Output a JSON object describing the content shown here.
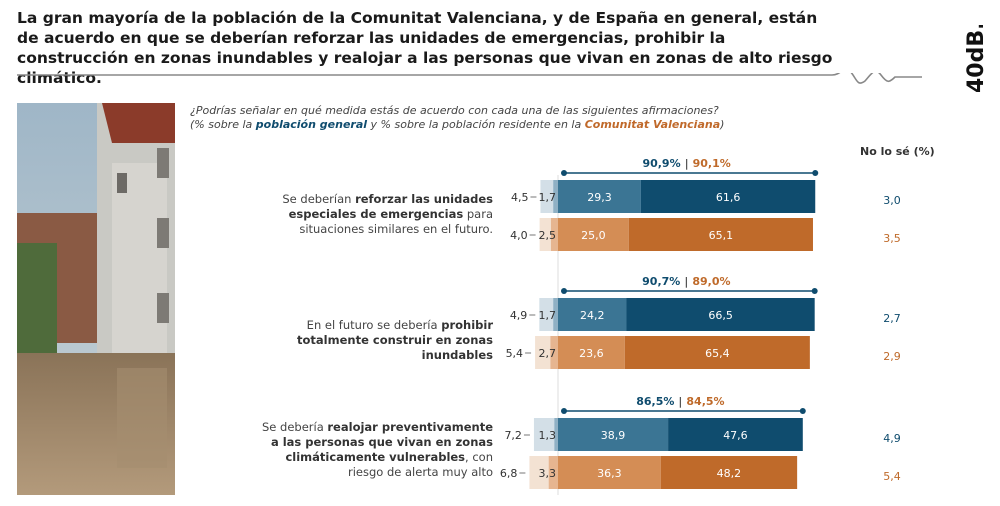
{
  "title": "La gran mayoría de la población de la Comunitat Valenciana, y de España en general, están de acuerdo en que se deberían reforzar las unidades de emergencias, prohibir la construcción en zonas inundables y realojar a las personas que vivan en zonas de alto riesgo climático.",
  "logo": "40dB.",
  "question": {
    "line1": "¿Podrías señalar en qué medida estás de acuerdo con cada una de las siguientes afirmaciones?",
    "pre": "(% sobre la ",
    "group1": "población general",
    "mid": " y % sobre la población residente en la ",
    "group2": "Comunitat Valenciana",
    "post": ")"
  },
  "colors": {
    "blue_dark": "#0f4c6e",
    "blue_mid": "#3b7594",
    "blue_light": "#8fb0c4",
    "blue_pale": "#d3dfe7",
    "orange_dark": "#bf6a2a",
    "orange_mid": "#d48d55",
    "orange_light": "#e6b590",
    "orange_pale": "#f3e2d3"
  },
  "statements": [
    {
      "pre": "Se deberían ",
      "bold": "reforzar las unidades especiales de emergencias",
      "post": " para situaciones similares en el futuro."
    },
    {
      "pre": "En el futuro se debería ",
      "bold": "prohibir totalmente construir en zonas inundables",
      "post": ""
    },
    {
      "pre": "Se debería ",
      "bold": "realojar preventivamente a las personas que vivan en zonas climáticamente vulnerables",
      "post": ", con riesgo de alerta muy alto"
    }
  ],
  "chart_data": {
    "type": "bar",
    "orientation": "horizontal-diverging",
    "no_sabe_header": "No lo sé (%)",
    "series": [
      {
        "name": "población general"
      },
      {
        "name": "Comunitat Valenciana"
      }
    ],
    "rows": [
      {
        "totals": [
          "90,9%",
          "90,1%"
        ],
        "general": {
          "strong_disagree": "4,5",
          "disagree": "1,7",
          "agree": "29,3",
          "strong_agree": "61,6",
          "no_sabe": "3,0"
        },
        "cv": {
          "strong_disagree": "4,0",
          "disagree": "2,5",
          "agree": "25,0",
          "strong_agree": "65,1",
          "no_sabe": "3,5"
        }
      },
      {
        "totals": [
          "90,7%",
          "89,0%"
        ],
        "general": {
          "strong_disagree": "4,9",
          "disagree": "1,7",
          "agree": "24,2",
          "strong_agree": "66,5",
          "no_sabe": "2,7"
        },
        "cv": {
          "strong_disagree": "5,4",
          "disagree": "2,7",
          "agree": "23,6",
          "strong_agree": "65,4",
          "no_sabe": "2,9"
        }
      },
      {
        "totals": [
          "86,5%",
          "84,5%"
        ],
        "general": {
          "strong_disagree": "7,2",
          "disagree": "1,3",
          "agree": "38,9",
          "strong_agree": "47,6",
          "no_sabe": "4,9"
        },
        "cv": {
          "strong_disagree": "6,8",
          "disagree": "3,3",
          "agree": "36,3",
          "strong_agree": "48,2",
          "no_sabe": "5,4"
        }
      }
    ]
  }
}
